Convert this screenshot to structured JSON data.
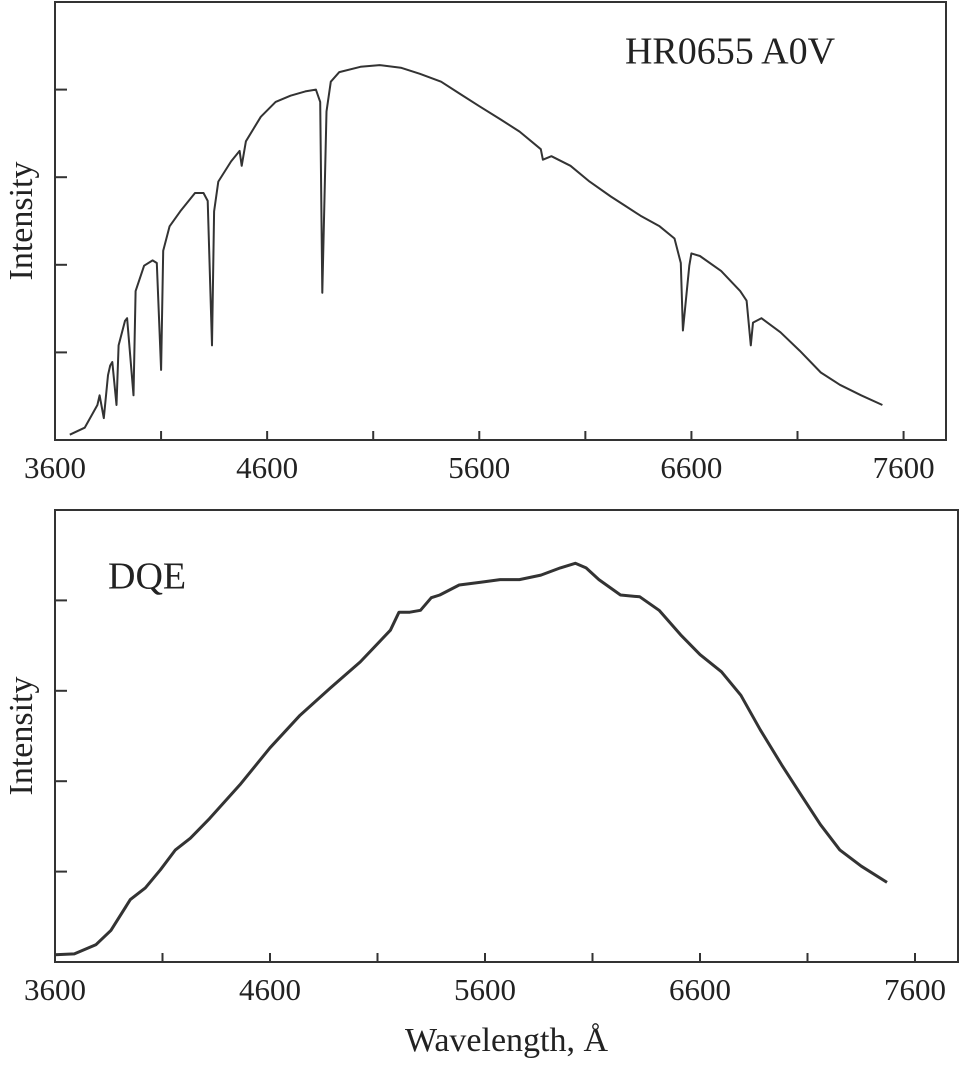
{
  "chart_data": [
    {
      "type": "line",
      "annotation": "HR0655 A0V",
      "ylabel": "Intensity",
      "color": "#333333",
      "x": [
        3670,
        3740,
        3800,
        3810,
        3830,
        3850,
        3860,
        3870,
        3890,
        3900,
        3930,
        3940,
        3970,
        3980,
        4020,
        4060,
        4080,
        4100,
        4110,
        4140,
        4190,
        4260,
        4300,
        4320,
        4340,
        4350,
        4370,
        4430,
        4470,
        4480,
        4500,
        4570,
        4640,
        4710,
        4780,
        4830,
        4850,
        4860,
        4880,
        4900,
        4940,
        5040,
        5130,
        5230,
        5320,
        5420,
        5510,
        5600,
        5700,
        5790,
        5890,
        5900,
        5940,
        6030,
        6120,
        6220,
        6290,
        6360,
        6450,
        6520,
        6550,
        6560,
        6590,
        6600,
        6640,
        6740,
        6830,
        6860,
        6880,
        6890,
        6930,
        7020,
        7110,
        7210,
        7300,
        7400,
        7500
      ],
      "values": [
        0.06,
        0.14,
        0.4,
        0.51,
        0.25,
        0.74,
        0.85,
        0.89,
        0.4,
        1.08,
        1.36,
        1.39,
        0.51,
        1.7,
        1.99,
        2.05,
        2.02,
        0.8,
        2.16,
        2.44,
        2.61,
        2.82,
        2.82,
        2.73,
        1.08,
        2.61,
        2.95,
        3.18,
        3.3,
        3.13,
        3.41,
        3.69,
        3.86,
        3.93,
        3.98,
        4.0,
        3.86,
        1.68,
        3.75,
        4.09,
        4.2,
        4.26,
        4.28,
        4.25,
        4.18,
        4.09,
        3.95,
        3.81,
        3.66,
        3.52,
        3.32,
        3.2,
        3.24,
        3.13,
        2.95,
        2.78,
        2.67,
        2.56,
        2.44,
        2.3,
        2.02,
        1.25,
        1.99,
        2.13,
        2.1,
        1.93,
        1.7,
        1.59,
        1.08,
        1.34,
        1.39,
        1.23,
        1.02,
        0.77,
        0.63,
        0.51,
        0.4
      ],
      "xlim": [
        3600,
        7800
      ],
      "ylim": [
        0,
        5
      ],
      "xticks": [
        3600,
        4600,
        5600,
        6600,
        7600
      ],
      "xminorticks": [
        4100,
        5100,
        6100,
        7100
      ],
      "ytickmarks": [
        1,
        2,
        3,
        4
      ]
    },
    {
      "type": "line",
      "annotation": "DQE",
      "ylabel": "Intensity",
      "xlabel": "Wavelength, Å",
      "color": "#333333",
      "x": [
        3600,
        3690,
        3790,
        3860,
        3950,
        4020,
        4090,
        4160,
        4230,
        4320,
        4460,
        4600,
        4740,
        4880,
        5020,
        5160,
        5200,
        5250,
        5300,
        5350,
        5390,
        5480,
        5580,
        5670,
        5760,
        5860,
        5950,
        6020,
        6070,
        6130,
        6230,
        6320,
        6410,
        6510,
        6600,
        6700,
        6790,
        6880,
        6980,
        7070,
        7160,
        7250,
        7350,
        7470
      ],
      "values": [
        0.08,
        0.09,
        0.19,
        0.35,
        0.69,
        0.82,
        1.02,
        1.24,
        1.37,
        1.59,
        1.96,
        2.37,
        2.73,
        3.03,
        3.32,
        3.67,
        3.87,
        3.87,
        3.89,
        4.03,
        4.06,
        4.17,
        4.2,
        4.23,
        4.23,
        4.28,
        4.36,
        4.41,
        4.36,
        4.23,
        4.06,
        4.04,
        3.89,
        3.62,
        3.4,
        3.21,
        2.95,
        2.57,
        2.18,
        1.85,
        1.52,
        1.24,
        1.06,
        0.88
      ],
      "xlim": [
        3600,
        7800
      ],
      "ylim": [
        0,
        5
      ],
      "xticks": [
        3600,
        4600,
        5600,
        6600,
        7600
      ],
      "xminorticks": [
        4100,
        5100,
        6100,
        7100
      ],
      "ytickmarks": [
        1,
        2,
        3,
        4
      ]
    }
  ]
}
